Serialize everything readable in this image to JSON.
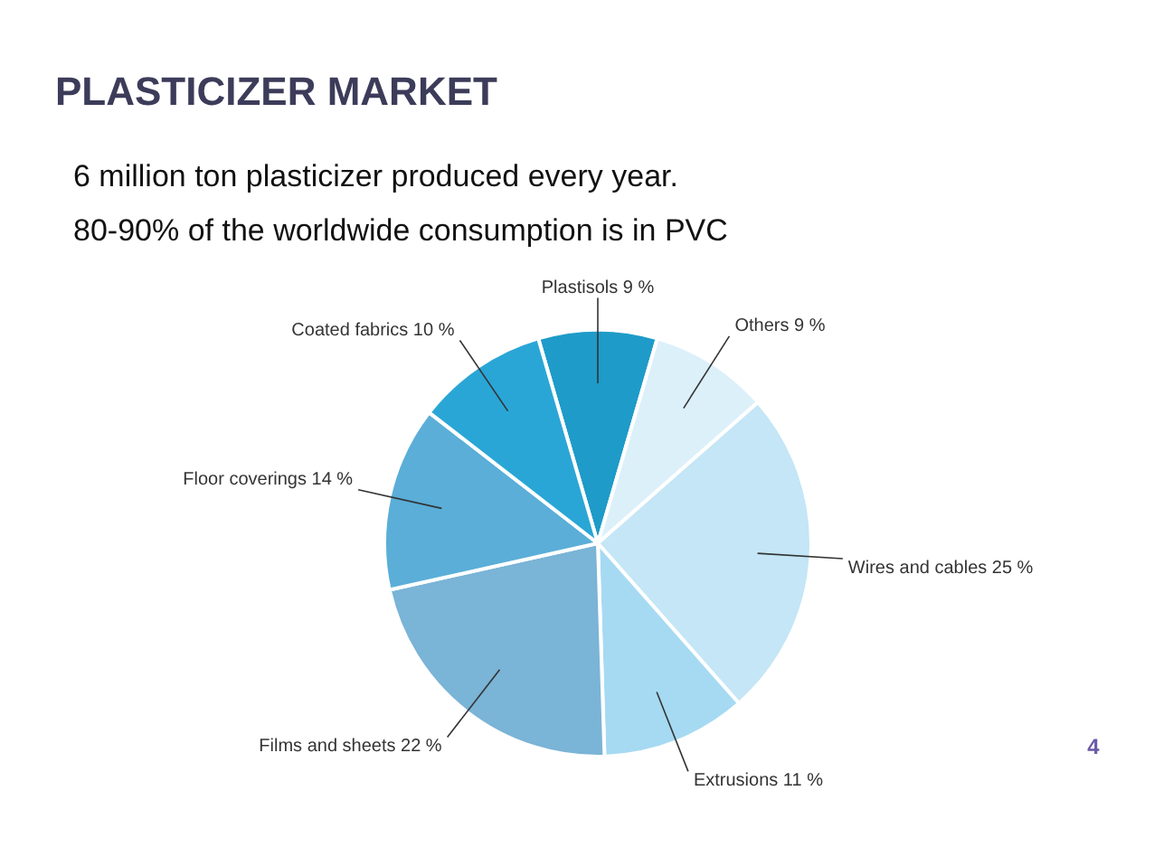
{
  "chart_data": {
    "type": "pie",
    "title": "PLASTICIZER MARKET",
    "annotations": [
      "6 million ton plasticizer produced every year.",
      "80-90% of the worldwide consumption is in PVC",
      "4"
    ],
    "categories": [
      "Plastisols",
      "Others",
      "Wires and cables",
      "Extrusions",
      "Films and sheets",
      "Floor coverings",
      "Coated fabrics"
    ],
    "values": [
      9,
      9,
      25,
      11,
      22,
      14,
      10
    ],
    "value_labels": [
      "9 %",
      "9 %",
      "25 %",
      "11 %",
      "22 %",
      "14 %",
      "10 %"
    ],
    "colors": [
      "#1e9bc8",
      "#dcf0fa",
      "#c4e6f6",
      "#a6daf2",
      "#7ab4d6",
      "#5aaed8",
      "#2aa6d6"
    ]
  }
}
